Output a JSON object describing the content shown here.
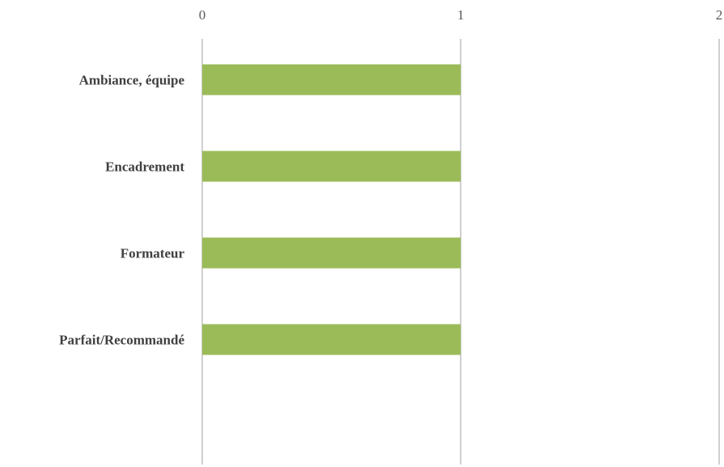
{
  "chart_data": {
    "type": "bar",
    "orientation": "horizontal",
    "title": "",
    "xlabel": "",
    "ylabel": "",
    "categories": [
      "Ambiance, équipe",
      "Encadrement",
      "Formateur",
      "Parfait/Recommandé"
    ],
    "values": [
      1,
      1,
      1,
      1
    ],
    "xlim": [
      0,
      2
    ],
    "xticks": [
      "0",
      "1",
      "2"
    ],
    "grid": true,
    "legend": "none",
    "bar_color": "#9bbb59",
    "grid_color": "#bfbfbf"
  }
}
